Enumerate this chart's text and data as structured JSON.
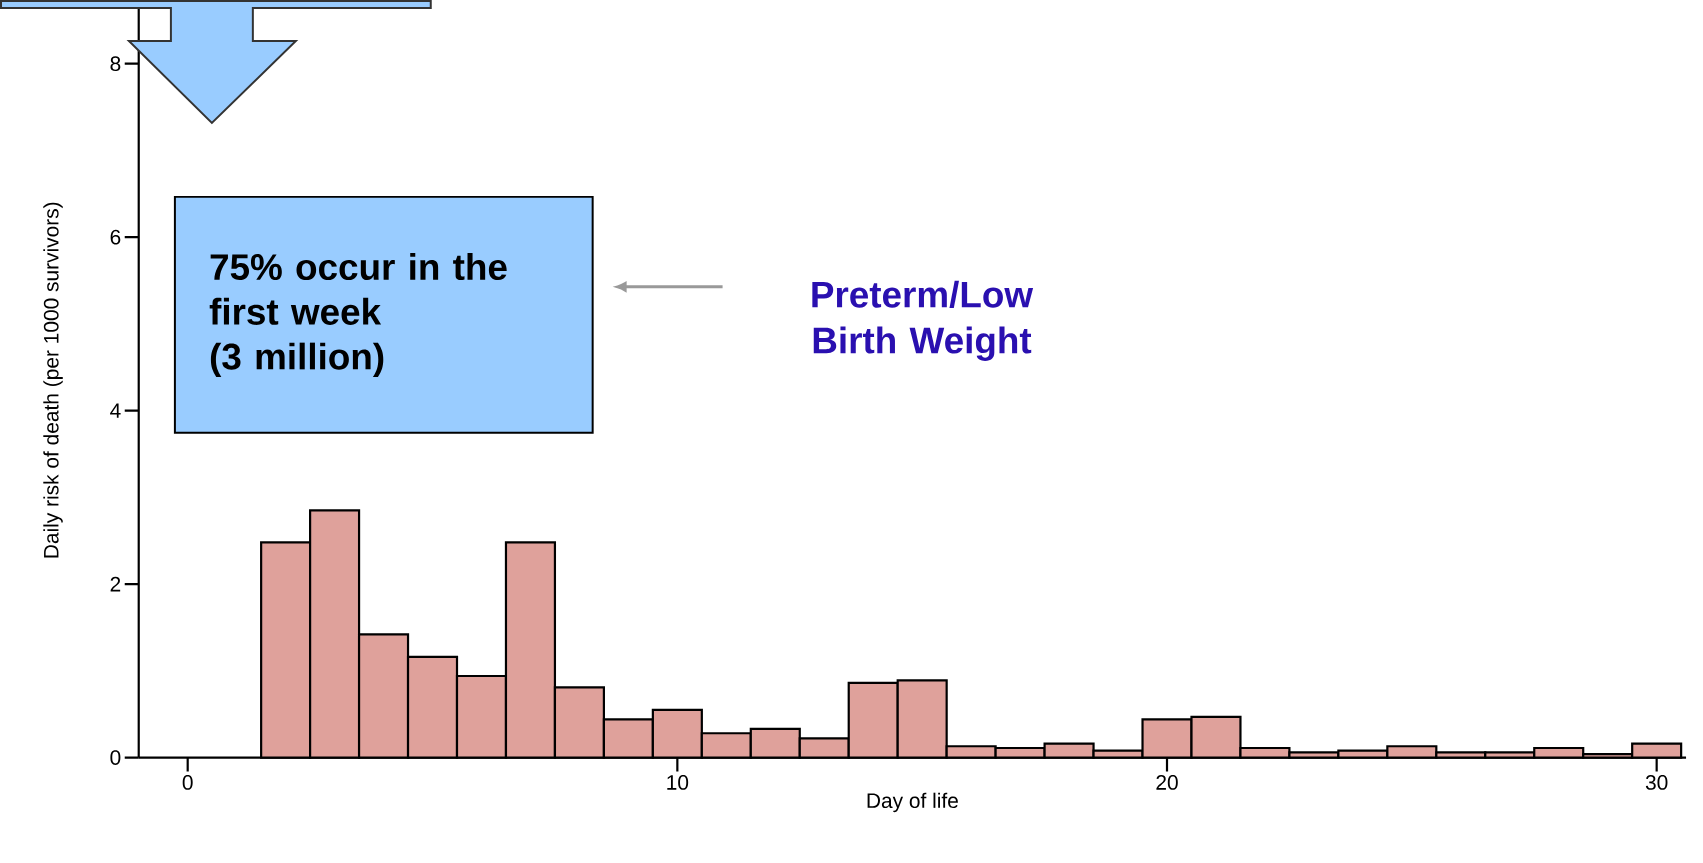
{
  "chart_data": {
    "type": "histogram",
    "xlabel": "Day of life",
    "ylabel": "Daily risk of death (per 1000 survivors)",
    "bins": [
      -0.5,
      0.5,
      1.5,
      2.5,
      3.5,
      4.5,
      5.5,
      6.5,
      7.5,
      8.5,
      9.5,
      10.5,
      11.5,
      12.5,
      13.5,
      14.5,
      15.5,
      16.5,
      17.5,
      18.5,
      19.5,
      20.5,
      21.5,
      22.5,
      23.5,
      24.5,
      25.5,
      26.5,
      27.5,
      28.5,
      29.5,
      30.5
    ],
    "values": [
      null,
      null,
      2.48,
      2.85,
      1.42,
      1.16,
      0.94,
      2.48,
      0.81,
      0.44,
      0.55,
      0.28,
      0.33,
      0.22,
      0.86,
      0.89,
      0.13,
      0.11,
      0.16,
      0.08,
      0.44,
      0.47,
      0.11,
      0.06,
      0.08,
      0.13,
      0.06,
      0.06,
      0.11,
      0.04,
      0.16
    ],
    "color": "#dfa19b",
    "xlim": [
      -1,
      30.6
    ],
    "ylim": [
      0,
      8.7
    ],
    "xticks": [
      0,
      10,
      20,
      30
    ],
    "yticks": [
      0,
      2,
      4,
      6,
      8
    ],
    "annotations": [
      "75% occur in the first week",
      "(3 million)",
      "Preterm/Low Birth Weight"
    ]
  }
}
